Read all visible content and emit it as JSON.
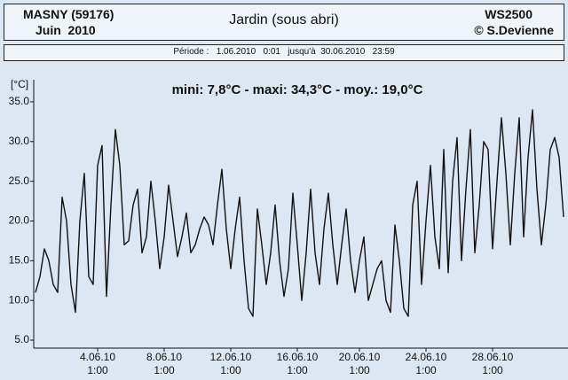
{
  "header": {
    "station": "MASNY (59176)",
    "month": "Juin  2010",
    "title": "Jardin (sous abri)",
    "model": "WS2500",
    "author": "© S.Devienne",
    "period": "Période :   1.06.2010   0:01   jusqu'à  30.06.2010   23:59"
  },
  "chart_data": {
    "type": "line",
    "subtitle": "mini: 7,8°C - maxi: 34,3°C - moy.: 19,0°C",
    "y_label": "[°C]",
    "color": "#111111",
    "ylim": [
      4,
      37
    ],
    "yticks": [
      {
        "value": 5,
        "label": "5.0"
      },
      {
        "value": 10,
        "label": "10.0"
      },
      {
        "value": 15,
        "label": "15.0"
      },
      {
        "value": 20,
        "label": "20.0"
      },
      {
        "value": 25,
        "label": "25.0"
      },
      {
        "value": 30,
        "label": "30.0"
      },
      {
        "value": 35,
        "label": "35.0"
      }
    ],
    "categories": [
      null,
      null,
      null,
      null,
      null,
      null,
      null,
      null,
      null,
      null,
      null,
      null,
      null,
      null,
      "4.06.10\n1:00",
      null,
      null,
      null,
      null,
      null,
      null,
      null,
      null,
      null,
      null,
      null,
      null,
      null,
      null,
      "8.06.10\n1:00",
      null,
      null,
      null,
      null,
      null,
      null,
      null,
      null,
      null,
      null,
      null,
      null,
      null,
      null,
      "12.06.10\n1:00",
      null,
      null,
      null,
      null,
      null,
      null,
      null,
      null,
      null,
      null,
      null,
      null,
      null,
      null,
      "16.06.10\n1:00",
      null,
      null,
      null,
      null,
      null,
      null,
      null,
      null,
      null,
      null,
      null,
      null,
      null,
      "20.06.10\n1:00",
      null,
      null,
      null,
      null,
      null,
      null,
      null,
      null,
      null,
      null,
      null,
      null,
      null,
      null,
      "24.06.10\n1:00",
      null,
      null,
      null,
      null,
      null,
      null,
      null,
      null,
      null,
      null,
      null,
      null,
      null,
      null,
      "28.06.10\n1:00",
      null,
      null,
      null,
      null,
      null,
      null,
      null,
      null,
      null,
      null,
      null,
      null,
      null,
      null,
      null,
      null
    ],
    "values": [
      11,
      13,
      16.5,
      15,
      12,
      11,
      23,
      20,
      12,
      8.5,
      20,
      26,
      13,
      12,
      27,
      29.5,
      10.5,
      22,
      31.5,
      27,
      17,
      17.5,
      22,
      24,
      16,
      18,
      25,
      20,
      14,
      18,
      24.5,
      20,
      15.5,
      18,
      21,
      16,
      17,
      19,
      20.5,
      19.5,
      17,
      22,
      26.5,
      19,
      14,
      19,
      23,
      15,
      9,
      8,
      21.5,
      17,
      12,
      16,
      22,
      15,
      10.5,
      14,
      23.5,
      17,
      10,
      16,
      24,
      16,
      12,
      19,
      23.5,
      17,
      12,
      17,
      21.5,
      15,
      11,
      15,
      18,
      10,
      12,
      14,
      15,
      10,
      8.5,
      19.5,
      15,
      9,
      8,
      22,
      25,
      12,
      20,
      27,
      18,
      14,
      29,
      13.5,
      25,
      30.5,
      15,
      24,
      31.5,
      16,
      22,
      30,
      29,
      16.5,
      25,
      33,
      26,
      17,
      26,
      33,
      18,
      28,
      34,
      24,
      17,
      22,
      29,
      30.5,
      28,
      20.5
    ]
  }
}
